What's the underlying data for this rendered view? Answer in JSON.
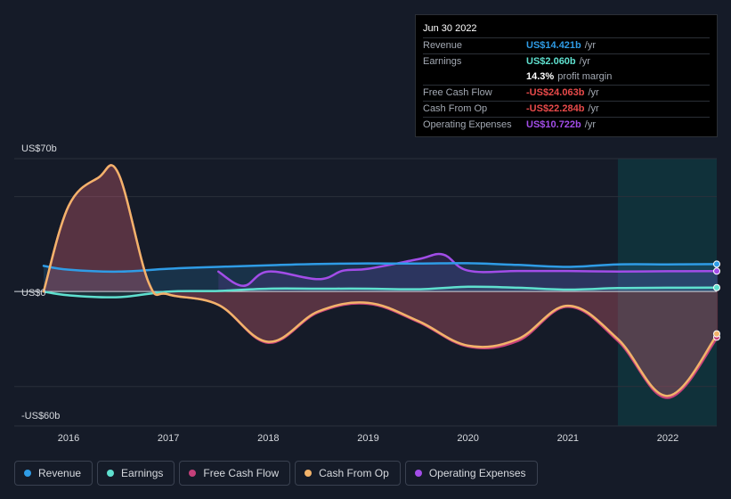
{
  "tooltip": {
    "date": "Jun 30 2022",
    "rows": [
      {
        "label": "Revenue",
        "value": "US$14.421b",
        "unit": "/yr",
        "color": "#2f9ce6"
      },
      {
        "label": "Earnings",
        "value": "US$2.060b",
        "unit": "/yr",
        "color": "#5fe0cf"
      },
      {
        "label": "",
        "value": "14.3%",
        "unit": "profit margin",
        "color": "#ffffff"
      },
      {
        "label": "Free Cash Flow",
        "value": "-US$24.063b",
        "unit": "/yr",
        "color": "#e84a4a"
      },
      {
        "label": "Cash From Op",
        "value": "-US$22.284b",
        "unit": "/yr",
        "color": "#e84a4a"
      },
      {
        "label": "Operating Expenses",
        "value": "US$10.722b",
        "unit": "/yr",
        "color": "#a24de8"
      }
    ]
  },
  "legend": [
    {
      "label": "Revenue",
      "color": "#2f9ce6"
    },
    {
      "label": "Earnings",
      "color": "#5fe0cf"
    },
    {
      "label": "Free Cash Flow",
      "color": "#c5407a"
    },
    {
      "label": "Cash From Op",
      "color": "#f2b36a"
    },
    {
      "label": "Operating Expenses",
      "color": "#a24de8"
    }
  ],
  "chart_data": {
    "type": "area",
    "title": "",
    "y_tick_labels": [
      "US$70b",
      "US$0",
      "-US$60b"
    ],
    "y_ticks": [
      70,
      0,
      -60
    ],
    "ylim": [
      -60,
      70
    ],
    "xlim": [
      2015.6,
      2022.5
    ],
    "x_tick_labels": [
      "2016",
      "2017",
      "2018",
      "2019",
      "2020",
      "2021",
      "2022"
    ],
    "x_ticks": [
      2016,
      2017,
      2018,
      2019,
      2020,
      2021,
      2022
    ],
    "forecast_shade_from": 2021.5,
    "series": [
      {
        "name": "Revenue",
        "color": "#2f9ce6",
        "x": [
          2015.75,
          2016.0,
          2016.5,
          2017.0,
          2017.5,
          2018.0,
          2018.5,
          2019.0,
          2019.5,
          2020.0,
          2020.5,
          2021.0,
          2021.5,
          2022.0,
          2022.5
        ],
        "values": [
          13.5,
          11.5,
          10.5,
          12.0,
          13.0,
          13.8,
          14.5,
          14.8,
          14.7,
          14.9,
          14.0,
          13.0,
          14.3,
          14.3,
          14.42
        ]
      },
      {
        "name": "Earnings",
        "color": "#5fe0cf",
        "x": [
          2015.75,
          2016.0,
          2016.5,
          2017.0,
          2017.5,
          2018.0,
          2018.5,
          2019.0,
          2019.5,
          2020.0,
          2020.5,
          2021.0,
          2021.5,
          2022.0,
          2022.5
        ],
        "values": [
          0.0,
          -2.0,
          -3.0,
          0.0,
          0.3,
          1.5,
          1.5,
          1.5,
          1.2,
          2.5,
          2.0,
          1.0,
          1.8,
          2.0,
          2.06
        ]
      },
      {
        "name": "Free Cash Flow",
        "color": "#c5407a",
        "x": [
          2015.75,
          2016.0,
          2016.3,
          2016.5,
          2016.8,
          2017.0,
          2017.5,
          2018.0,
          2018.5,
          2019.0,
          2019.5,
          2020.0,
          2020.5,
          2021.0,
          2021.5,
          2022.0,
          2022.5
        ],
        "values": [
          0.0,
          45.0,
          60.0,
          62.0,
          5.0,
          -1.5,
          -7.0,
          -27.0,
          -11.0,
          -6.5,
          -16.0,
          -29.0,
          -26.0,
          -8.0,
          -26.0,
          -56.0,
          -24.06
        ]
      },
      {
        "name": "Cash From Op",
        "color": "#f2b36a",
        "x": [
          2015.75,
          2016.0,
          2016.3,
          2016.5,
          2016.8,
          2017.0,
          2017.5,
          2018.0,
          2018.5,
          2019.0,
          2019.5,
          2020.0,
          2020.5,
          2021.0,
          2021.5,
          2022.0,
          2022.5
        ],
        "values": [
          0.0,
          45.0,
          60.0,
          62.0,
          5.0,
          -1.5,
          -7.0,
          -26.5,
          -10.5,
          -6.0,
          -15.5,
          -28.5,
          -25.0,
          -7.5,
          -25.0,
          -55.0,
          -22.28
        ]
      },
      {
        "name": "Operating Expenses",
        "color": "#a24de8",
        "x": [
          2017.5,
          2017.75,
          2018.0,
          2018.5,
          2018.75,
          2019.0,
          2019.5,
          2019.75,
          2020.0,
          2020.5,
          2021.0,
          2021.5,
          2022.0,
          2022.5
        ],
        "values": [
          10.5,
          3.0,
          10.5,
          6.5,
          11.0,
          12.0,
          17.0,
          19.5,
          11.0,
          10.8,
          10.8,
          10.5,
          10.7,
          10.72
        ]
      }
    ]
  }
}
